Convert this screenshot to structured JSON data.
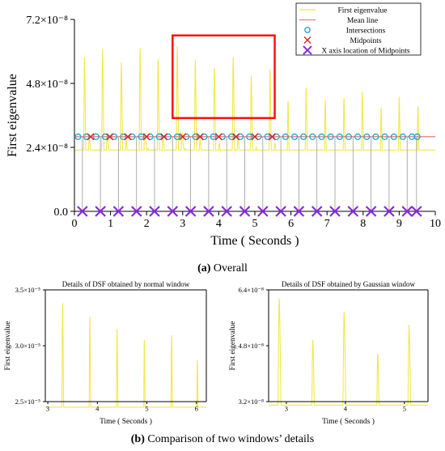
{
  "colors": {
    "eigen": "#f2e84a",
    "mean": "#f08080",
    "intersection": "#1aa7d6",
    "midpoint": "#e02020",
    "xaxis_mid": "#8a2be2",
    "vline": "#9a9a9a",
    "box": "#ff1010"
  },
  "captions": {
    "a_label": "(a)",
    "a_text": " Overall",
    "b_label": "(b)",
    "b_text": " Comparison of two windows’ details"
  },
  "chart_data": [
    {
      "id": "overall",
      "type": "line",
      "xlabel": "Time ( Seconds )",
      "ylabel": "First eigenvalue",
      "xlim": [
        0,
        10
      ],
      "ylim": [
        0,
        7.2e-08
      ],
      "xticks": [
        "0",
        "1",
        "2",
        "3",
        "4",
        "5",
        "6",
        "7",
        "8",
        "9",
        "10"
      ],
      "yticks": [
        "0.0",
        "2.4×10⁻⁸",
        "4.8×10⁻⁸",
        "7.2×10⁻⁸"
      ],
      "ytick_values": [
        0,
        2.4e-08,
        4.8e-08,
        7.2e-08
      ],
      "mean_line": 2.8e-08,
      "peaks": [
        {
          "t": 0.28,
          "v": 5.8e-08
        },
        {
          "t": 0.78,
          "v": 6.1e-08
        },
        {
          "t": 1.3,
          "v": 5.6e-08
        },
        {
          "t": 1.82,
          "v": 6.2e-08
        },
        {
          "t": 2.32,
          "v": 5.8e-08
        },
        {
          "t": 2.85,
          "v": 6.2e-08
        },
        {
          "t": 3.35,
          "v": 5.7e-08
        },
        {
          "t": 3.88,
          "v": 5.4e-08
        },
        {
          "t": 4.4,
          "v": 5.8e-08
        },
        {
          "t": 4.9,
          "v": 5.1e-08
        },
        {
          "t": 5.42,
          "v": 5.4e-08
        },
        {
          "t": 5.92,
          "v": 4.2e-08
        },
        {
          "t": 6.42,
          "v": 4.7e-08
        },
        {
          "t": 6.95,
          "v": 4.2e-08
        },
        {
          "t": 7.47,
          "v": 4.3e-08
        },
        {
          "t": 7.98,
          "v": 4.5e-08
        },
        {
          "t": 8.5,
          "v": 3.9e-08
        },
        {
          "t": 9.0,
          "v": 4.3e-08
        },
        {
          "t": 9.52,
          "v": 4e-08
        }
      ],
      "intersections": [
        0.1,
        0.33,
        0.6,
        0.85,
        1.1,
        1.35,
        1.6,
        1.85,
        2.1,
        2.35,
        2.6,
        2.85,
        3.1,
        3.35,
        3.6,
        3.85,
        4.1,
        4.35,
        4.6,
        4.85,
        5.1,
        5.35,
        5.6,
        5.85,
        6.1,
        6.35,
        6.6,
        6.85,
        7.1,
        7.35,
        7.6,
        7.85,
        8.1,
        8.35,
        8.6,
        8.85,
        9.1,
        9.35,
        9.5
      ],
      "midpoints": [
        0.45,
        0.98,
        1.48,
        2.0,
        2.48,
        3.0,
        3.48,
        4.0,
        4.48,
        5.0,
        5.48
      ],
      "midpoint_x": [
        0.22,
        0.72,
        1.22,
        1.72,
        2.22,
        2.72,
        3.22,
        3.72,
        4.22,
        4.72,
        5.22,
        5.72,
        6.22,
        6.72,
        7.22,
        7.72,
        8.22,
        8.72,
        9.22,
        9.48
      ],
      "highlight_box": {
        "x": [
          2.72,
          5.55
        ],
        "y": [
          3.5e-08,
          6.6e-08
        ]
      },
      "legend": {
        "position": "top-right",
        "entries": [
          "First eigenvalue",
          "Mean line",
          "Intersections",
          "Midpoints",
          "X axis location of Midpoints"
        ]
      }
    },
    {
      "id": "normal-window",
      "type": "line",
      "title": "Details of DSF obtained by normal window",
      "xlabel": "Time ( Seconds )",
      "ylabel": "First eigenvalue",
      "xlim": [
        2.95,
        6.2
      ],
      "ylim": [
        2.5e-05,
        3.5e-05
      ],
      "xticks": [
        "3",
        "4",
        "5",
        "6"
      ],
      "xtick_values": [
        3,
        4,
        5,
        6
      ],
      "yticks": [
        "2.5×10⁻⁵",
        "3.0×10⁻⁵",
        "3.5×10⁻⁵"
      ],
      "ytick_values": [
        2.5e-05,
        3e-05,
        3.5e-05
      ],
      "peaks": [
        {
          "t": 3.3,
          "v": 3.4e-05
        },
        {
          "t": 3.85,
          "v": 3.28e-05
        },
        {
          "t": 4.4,
          "v": 3.16e-05
        },
        {
          "t": 4.95,
          "v": 3.08e-05
        },
        {
          "t": 5.5,
          "v": 3.1e-05
        },
        {
          "t": 6.02,
          "v": 2.88e-05
        }
      ]
    },
    {
      "id": "gaussian-window",
      "type": "line",
      "title": "Details of DSF obtained by Gaussian window",
      "xlabel": "Time ( Seconds )",
      "ylabel": "First eigenvalue",
      "xlim": [
        2.7,
        5.4
      ],
      "ylim": [
        3.2e-08,
        6.4e-08
      ],
      "xticks": [
        "3",
        "4",
        "5"
      ],
      "xtick_values": [
        3,
        4,
        5
      ],
      "yticks": [
        "3.2×10⁻⁸",
        "4.8×10⁻⁸",
        "6.4×10⁻⁸"
      ],
      "ytick_values": [
        3.2e-08,
        4.8e-08,
        6.4e-08
      ],
      "peaks": [
        {
          "t": 2.88,
          "v": 6.2e-08
        },
        {
          "t": 3.45,
          "v": 5e-08
        },
        {
          "t": 3.98,
          "v": 5.8e-08
        },
        {
          "t": 4.55,
          "v": 4.6e-08
        },
        {
          "t": 5.08,
          "v": 5.4e-08
        }
      ]
    }
  ]
}
